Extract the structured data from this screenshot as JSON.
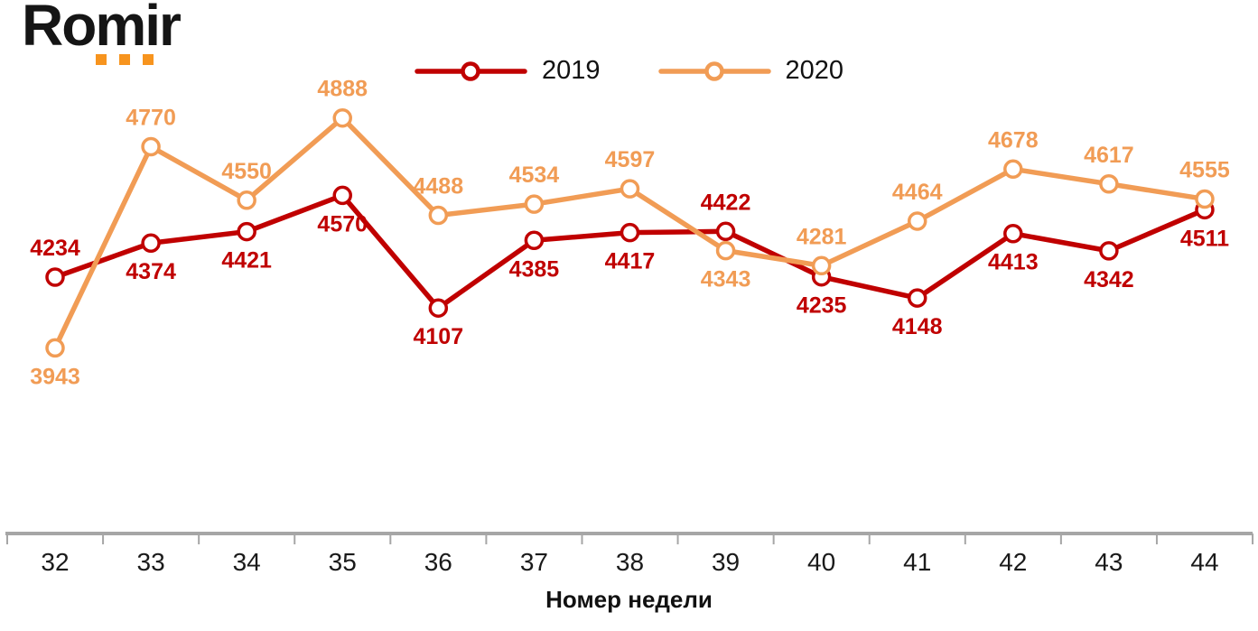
{
  "logo": {
    "text": "Romir",
    "dots_color": "#F7941E",
    "text_color": "#151515"
  },
  "chart_data": {
    "type": "line",
    "title": "",
    "xlabel": "Номер недели",
    "ylabel": "",
    "categories": [
      32,
      33,
      34,
      35,
      36,
      37,
      38,
      39,
      40,
      41,
      42,
      43,
      44
    ],
    "series": [
      {
        "name": "2019",
        "color": "#C00000",
        "values": [
          4234,
          4374,
          4421,
          4570,
          4107,
          4385,
          4417,
          4422,
          4235,
          4148,
          4413,
          4342,
          4511
        ],
        "label_positions": [
          "above",
          "below",
          "below",
          "below",
          "below",
          "below",
          "below",
          "above",
          "below",
          "below",
          "below",
          "below",
          "below"
        ]
      },
      {
        "name": "2020",
        "color": "#F19C55",
        "values": [
          3943,
          4770,
          4550,
          4888,
          4488,
          4534,
          4597,
          4343,
          4281,
          4464,
          4678,
          4617,
          4555
        ],
        "label_positions": [
          "below",
          "above",
          "above",
          "above",
          "above",
          "above",
          "above",
          "below",
          "above",
          "above",
          "above",
          "above",
          "above"
        ]
      }
    ],
    "ylim": [
      3900,
      4950
    ],
    "grid": false,
    "legend_position": "top",
    "axis_color": "#A6A6A6",
    "markers": "circle-open"
  }
}
